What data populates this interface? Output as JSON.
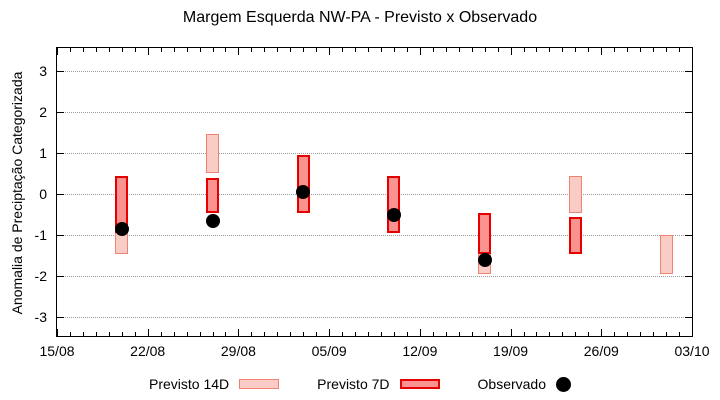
{
  "chart_data": {
    "type": "bar",
    "subtype": "floating-range-bars-with-scatter-overlay (forecast vs observed)",
    "title": "Margem Esquerda NW-PA - Previsto x Observado",
    "xlabel": "",
    "ylabel": "Anomalia de Preciptação Categorizada",
    "x_tick_labels": [
      "15/08",
      "22/08",
      "29/08",
      "05/09",
      "12/09",
      "19/09",
      "26/09",
      "03/10"
    ],
    "x_range_days": [
      0,
      49
    ],
    "x_major_tick_every_days": 7,
    "x_minor_tick_every_days": 1,
    "y_ticks": [
      3,
      2,
      1,
      0,
      -1,
      -2,
      -3
    ],
    "ylim": [
      -3.45,
      3.55
    ],
    "grid": {
      "horizontal_dotted_at_y_ticks": true,
      "color": "#9a9a9a"
    },
    "legend_position": "below-chart",
    "colors": {
      "background": "#ffffff",
      "axis": "#000000",
      "previsto14_fill": "#f9cdc5",
      "previsto14_border": "#ef8272",
      "previsto7_fill": "#f99390",
      "previsto7_border": "#e60000",
      "observado": "#000000"
    },
    "bar_width_days": 1,
    "series": [
      {
        "name": "Previsto 14D",
        "kind": "range-bar",
        "fill": "#f9cdc5",
        "border": "#ef8272",
        "bars": [
          {
            "date": "20/08",
            "day": 5,
            "hi": 0.45,
            "lo": -1.45
          },
          {
            "date": "27/08",
            "day": 12,
            "hi": 1.45,
            "lo": 0.5
          },
          {
            "date": "17/09",
            "day": 33,
            "hi": -0.45,
            "lo": -1.95
          },
          {
            "date": "24/09",
            "day": 40,
            "hi": 0.45,
            "lo": -0.45
          },
          {
            "date": "01/10",
            "day": 47,
            "hi": -1.0,
            "lo": -1.95
          }
        ]
      },
      {
        "name": "Previsto 7D",
        "kind": "range-bar",
        "fill": "#f99390",
        "border": "#e60000",
        "bars": [
          {
            "date": "20/08",
            "day": 5,
            "hi": 0.45,
            "lo": -0.95
          },
          {
            "date": "27/08",
            "day": 12,
            "hi": 0.4,
            "lo": -0.45
          },
          {
            "date": "03/09",
            "day": 19,
            "hi": 0.95,
            "lo": -0.45
          },
          {
            "date": "10/09",
            "day": 26,
            "hi": 0.45,
            "lo": -0.95
          },
          {
            "date": "17/09",
            "day": 33,
            "hi": -0.45,
            "lo": -1.45
          },
          {
            "date": "24/09",
            "day": 40,
            "hi": -0.55,
            "lo": -1.45
          }
        ]
      },
      {
        "name": "Observado",
        "kind": "scatter",
        "color": "#000000",
        "marker": "filled-circle",
        "points": [
          {
            "date": "20/08",
            "day": 5,
            "y": -0.85
          },
          {
            "date": "27/08",
            "day": 12,
            "y": -0.65
          },
          {
            "date": "03/09",
            "day": 19,
            "y": 0.05
          },
          {
            "date": "10/09",
            "day": 26,
            "y": -0.5
          },
          {
            "date": "17/09",
            "day": 33,
            "y": -1.6
          }
        ]
      }
    ]
  }
}
